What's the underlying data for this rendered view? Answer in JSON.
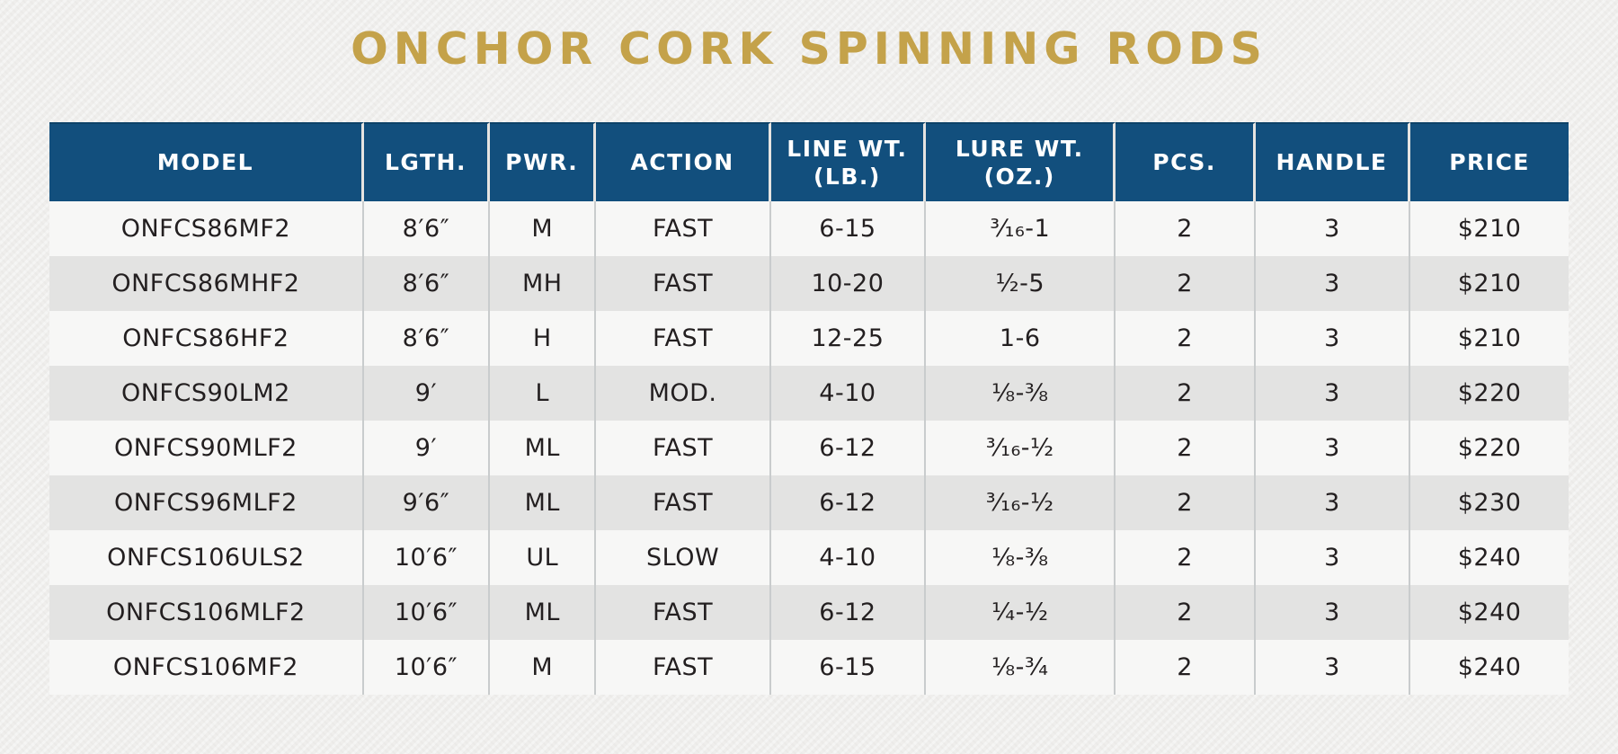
{
  "title": "ONCHOR CORK SPINNING RODS",
  "colors": {
    "page_background": "#efeeec",
    "title_gold": "#c4a24a",
    "header_blue": "#124f7d",
    "header_text": "#ffffff",
    "row_light": "#f7f7f6",
    "row_dark": "#e3e3e2",
    "cell_text": "#231f20"
  },
  "table": {
    "columns": [
      {
        "key": "model",
        "label": "MODEL"
      },
      {
        "key": "length",
        "label": "LGTH."
      },
      {
        "key": "power",
        "label": "PWR."
      },
      {
        "key": "action",
        "label": "ACTION"
      },
      {
        "key": "line_wt",
        "label": "LINE WT.\n(LB.)"
      },
      {
        "key": "lure_wt",
        "label": "LURE WT.\n(OZ.)"
      },
      {
        "key": "pcs",
        "label": "PCS."
      },
      {
        "key": "handle",
        "label": "HANDLE"
      },
      {
        "key": "price",
        "label": "PRICE"
      }
    ],
    "rows": [
      {
        "model": "ONFCS86MF2",
        "length": "8′6″",
        "power": "M",
        "action": "FAST",
        "line_wt": "6-15",
        "lure_wt": "³⁄₁₆-1",
        "pcs": "2",
        "handle": "3",
        "price": "$210"
      },
      {
        "model": "ONFCS86MHF2",
        "length": "8′6″",
        "power": "MH",
        "action": "FAST",
        "line_wt": "10-20",
        "lure_wt": "½-5",
        "pcs": "2",
        "handle": "3",
        "price": "$210"
      },
      {
        "model": "ONFCS86HF2",
        "length": "8′6″",
        "power": "H",
        "action": "FAST",
        "line_wt": "12-25",
        "lure_wt": "1-6",
        "pcs": "2",
        "handle": "3",
        "price": "$210"
      },
      {
        "model": "ONFCS90LM2",
        "length": "9′",
        "power": "L",
        "action": "MOD.",
        "line_wt": "4-10",
        "lure_wt": "⅛-⅜",
        "pcs": "2",
        "handle": "3",
        "price": "$220"
      },
      {
        "model": "ONFCS90MLF2",
        "length": "9′",
        "power": "ML",
        "action": "FAST",
        "line_wt": "6-12",
        "lure_wt": "³⁄₁₆-½",
        "pcs": "2",
        "handle": "3",
        "price": "$220"
      },
      {
        "model": "ONFCS96MLF2",
        "length": "9′6″",
        "power": "ML",
        "action": "FAST",
        "line_wt": "6-12",
        "lure_wt": "³⁄₁₆-½",
        "pcs": "2",
        "handle": "3",
        "price": "$230"
      },
      {
        "model": "ONFCS106ULS2",
        "length": "10′6″",
        "power": "UL",
        "action": "SLOW",
        "line_wt": "4-10",
        "lure_wt": "⅛-⅜",
        "pcs": "2",
        "handle": "3",
        "price": "$240"
      },
      {
        "model": "ONFCS106MLF2",
        "length": "10′6″",
        "power": "ML",
        "action": "FAST",
        "line_wt": "6-12",
        "lure_wt": "¼-½",
        "pcs": "2",
        "handle": "3",
        "price": "$240"
      },
      {
        "model": "ONFCS106MF2",
        "length": "10′6″",
        "power": "M",
        "action": "FAST",
        "line_wt": "6-15",
        "lure_wt": "⅛-¾",
        "pcs": "2",
        "handle": "3",
        "price": "$240"
      }
    ]
  }
}
